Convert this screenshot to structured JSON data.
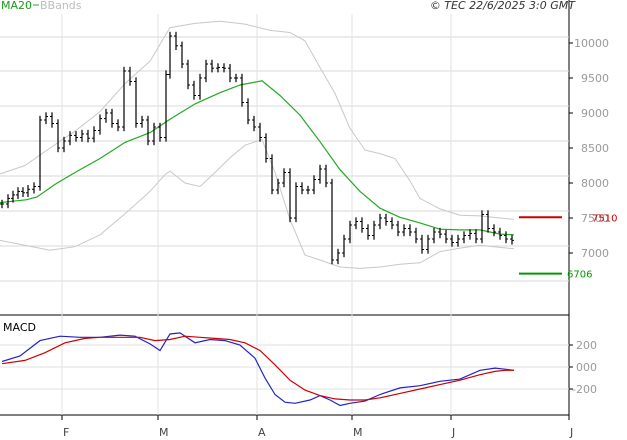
{
  "header": {
    "legend_ma": "MA20",
    "legend_bb": "BBands",
    "copyright": "© TEC 22/6/2025 3:0 GMT"
  },
  "panels": {
    "macd_label": "MACD"
  },
  "chart_data": [
    {
      "type": "line",
      "title": "",
      "x_labels": [
        "F",
        "M",
        "A",
        "M",
        "J",
        "J"
      ],
      "y_ticks": [
        10000,
        9500,
        9000,
        8500,
        8000,
        7500,
        7000
      ],
      "ylim": [
        6550,
        10400
      ],
      "grid": true,
      "levels": [
        {
          "label": "7510",
          "value": 7510,
          "color": "#cc0000"
        },
        {
          "label": "6706",
          "value": 6706,
          "color": "#009900"
        }
      ],
      "series": [
        {
          "name": "MA20",
          "color": "#22aa22",
          "points": [
            [
              0,
              7720
            ],
            [
              13,
              7740
            ],
            [
              26,
              7760
            ],
            [
              37,
              7800
            ],
            [
              55,
              7980
            ],
            [
              75,
              8150
            ],
            [
              100,
              8350
            ],
            [
              125,
              8580
            ],
            [
              150,
              8720
            ],
            [
              170,
              8910
            ],
            [
              195,
              9130
            ],
            [
              220,
              9290
            ],
            [
              240,
              9400
            ],
            [
              262,
              9460
            ],
            [
              280,
              9250
            ],
            [
              300,
              8970
            ],
            [
              320,
              8590
            ],
            [
              340,
              8190
            ],
            [
              360,
              7880
            ],
            [
              380,
              7640
            ],
            [
              400,
              7510
            ],
            [
              420,
              7430
            ],
            [
              440,
              7340
            ],
            [
              460,
              7330
            ],
            [
              480,
              7330
            ],
            [
              500,
              7270
            ],
            [
              514,
              7260
            ]
          ]
        },
        {
          "name": "BBands upper",
          "color": "#c8c8c8",
          "points": [
            [
              0,
              8130
            ],
            [
              25,
              8250
            ],
            [
              50,
              8500
            ],
            [
              75,
              8740
            ],
            [
              100,
              9020
            ],
            [
              125,
              9420
            ],
            [
              150,
              9740
            ],
            [
              170,
              10220
            ],
            [
              195,
              10280
            ],
            [
              220,
              10310
            ],
            [
              245,
              10270
            ],
            [
              270,
              10180
            ],
            [
              290,
              10150
            ],
            [
              305,
              10030
            ],
            [
              320,
              9650
            ],
            [
              335,
              9280
            ],
            [
              350,
              8780
            ],
            [
              365,
              8470
            ],
            [
              380,
              8420
            ],
            [
              395,
              8350
            ],
            [
              410,
              8030
            ],
            [
              420,
              7780
            ],
            [
              440,
              7630
            ],
            [
              460,
              7540
            ],
            [
              480,
              7530
            ],
            [
              500,
              7500
            ],
            [
              514,
              7480
            ]
          ]
        },
        {
          "name": "BBands lower",
          "color": "#c8c8c8",
          "points": [
            [
              0,
              7180
            ],
            [
              25,
              7110
            ],
            [
              50,
              7040
            ],
            [
              75,
              7090
            ],
            [
              100,
              7260
            ],
            [
              125,
              7560
            ],
            [
              150,
              7880
            ],
            [
              165,
              8120
            ],
            [
              170,
              8170
            ],
            [
              185,
              8000
            ],
            [
              200,
              7950
            ],
            [
              215,
              8150
            ],
            [
              230,
              8360
            ],
            [
              245,
              8540
            ],
            [
              262,
              8620
            ],
            [
              275,
              8150
            ],
            [
              290,
              7480
            ],
            [
              305,
              6970
            ],
            [
              320,
              6900
            ],
            [
              340,
              6800
            ],
            [
              360,
              6780
            ],
            [
              380,
              6800
            ],
            [
              400,
              6840
            ],
            [
              420,
              6860
            ],
            [
              440,
              7020
            ],
            [
              460,
              7070
            ],
            [
              480,
              7110
            ],
            [
              500,
              7080
            ],
            [
              514,
              7060
            ]
          ]
        },
        {
          "name": "Price",
          "color": "#000000",
          "points": [
            [
              2,
              7700
            ],
            [
              8,
              7780
            ],
            [
              13,
              7830
            ],
            [
              18,
              7880
            ],
            [
              23,
              7860
            ],
            [
              28,
              7910
            ],
            [
              34,
              7950
            ],
            [
              40,
              8900
            ],
            [
              46,
              8950
            ],
            [
              52,
              8850
            ],
            [
              58,
              8500
            ],
            [
              64,
              8600
            ],
            [
              70,
              8680
            ],
            [
              76,
              8650
            ],
            [
              82,
              8700
            ],
            [
              88,
              8640
            ],
            [
              94,
              8750
            ],
            [
              100,
              8920
            ],
            [
              106,
              9000
            ],
            [
              112,
              8850
            ],
            [
              118,
              8800
            ],
            [
              124,
              9600
            ],
            [
              130,
              9450
            ],
            [
              136,
              8850
            ],
            [
              142,
              8900
            ],
            [
              148,
              8600
            ],
            [
              154,
              8800
            ],
            [
              160,
              8650
            ],
            [
              166,
              9550
            ],
            [
              170,
              10100
            ],
            [
              176,
              9960
            ],
            [
              182,
              9700
            ],
            [
              188,
              9400
            ],
            [
              194,
              9250
            ],
            [
              200,
              9500
            ],
            [
              206,
              9700
            ],
            [
              212,
              9640
            ],
            [
              218,
              9650
            ],
            [
              224,
              9640
            ],
            [
              230,
              9500
            ],
            [
              236,
              9500
            ],
            [
              242,
              9150
            ],
            [
              248,
              8900
            ],
            [
              254,
              8800
            ],
            [
              260,
              8650
            ],
            [
              266,
              8350
            ],
            [
              272,
              7900
            ],
            [
              278,
              8000
            ],
            [
              284,
              8150
            ],
            [
              290,
              7500
            ],
            [
              296,
              7950
            ],
            [
              302,
              7900
            ],
            [
              308,
              7900
            ],
            [
              314,
              8050
            ],
            [
              320,
              8200
            ],
            [
              326,
              8000
            ],
            [
              332,
              6900
            ],
            [
              338,
              7000
            ],
            [
              344,
              7200
            ],
            [
              350,
              7400
            ],
            [
              356,
              7450
            ],
            [
              362,
              7350
            ],
            [
              368,
              7250
            ],
            [
              374,
              7400
            ],
            [
              380,
              7500
            ],
            [
              386,
              7450
            ],
            [
              392,
              7400
            ],
            [
              398,
              7300
            ],
            [
              404,
              7350
            ],
            [
              410,
              7300
            ],
            [
              416,
              7200
            ],
            [
              422,
              7050
            ],
            [
              428,
              7200
            ],
            [
              434,
              7300
            ],
            [
              440,
              7270
            ],
            [
              446,
              7200
            ],
            [
              452,
              7150
            ],
            [
              458,
              7200
            ],
            [
              464,
              7250
            ],
            [
              470,
              7280
            ],
            [
              476,
              7200
            ],
            [
              482,
              7550
            ],
            [
              488,
              7350
            ],
            [
              494,
              7300
            ],
            [
              500,
              7250
            ],
            [
              506,
              7200
            ],
            [
              512,
              7180
            ]
          ]
        }
      ]
    },
    {
      "type": "line",
      "title": "MACD",
      "y_ticks": [
        200,
        0,
        -200
      ],
      "y_tick_labels": [
        "200",
        "000",
        "-200"
      ],
      "ylim": [
        -410,
        400
      ],
      "series": [
        {
          "name": "MACD",
          "color": "#2222cc",
          "points": [
            [
              2,
              50
            ],
            [
              20,
              100
            ],
            [
              40,
              240
            ],
            [
              60,
              280
            ],
            [
              80,
              270
            ],
            [
              100,
              270
            ],
            [
              120,
              290
            ],
            [
              135,
              280
            ],
            [
              150,
              210
            ],
            [
              160,
              150
            ],
            [
              170,
              300
            ],
            [
              180,
              310
            ],
            [
              195,
              220
            ],
            [
              210,
              250
            ],
            [
              225,
              240
            ],
            [
              240,
              200
            ],
            [
              255,
              80
            ],
            [
              265,
              -100
            ],
            [
              275,
              -250
            ],
            [
              285,
              -320
            ],
            [
              295,
              -330
            ],
            [
              310,
              -300
            ],
            [
              320,
              -260
            ],
            [
              330,
              -300
            ],
            [
              340,
              -350
            ],
            [
              350,
              -330
            ],
            [
              365,
              -310
            ],
            [
              380,
              -250
            ],
            [
              400,
              -190
            ],
            [
              420,
              -170
            ],
            [
              440,
              -130
            ],
            [
              460,
              -110
            ],
            [
              480,
              -30
            ],
            [
              495,
              -10
            ],
            [
              505,
              -20
            ],
            [
              514,
              -30
            ]
          ]
        },
        {
          "name": "Signal",
          "color": "#cc0000",
          "points": [
            [
              2,
              30
            ],
            [
              25,
              60
            ],
            [
              45,
              130
            ],
            [
              65,
              220
            ],
            [
              85,
              260
            ],
            [
              100,
              270
            ],
            [
              120,
              270
            ],
            [
              140,
              270
            ],
            [
              155,
              240
            ],
            [
              170,
              250
            ],
            [
              185,
              280
            ],
            [
              200,
              270
            ],
            [
              215,
              260
            ],
            [
              230,
              250
            ],
            [
              245,
              220
            ],
            [
              260,
              150
            ],
            [
              275,
              20
            ],
            [
              290,
              -120
            ],
            [
              305,
              -210
            ],
            [
              320,
              -260
            ],
            [
              335,
              -290
            ],
            [
              350,
              -300
            ],
            [
              365,
              -300
            ],
            [
              380,
              -280
            ],
            [
              400,
              -240
            ],
            [
              420,
              -200
            ],
            [
              440,
              -160
            ],
            [
              460,
              -120
            ],
            [
              480,
              -70
            ],
            [
              495,
              -40
            ],
            [
              505,
              -30
            ],
            [
              514,
              -30
            ]
          ]
        }
      ]
    }
  ],
  "price_tick_labels": [
    "10000",
    "9500",
    "9000",
    "8500",
    "8000",
    "7500",
    "7000"
  ]
}
